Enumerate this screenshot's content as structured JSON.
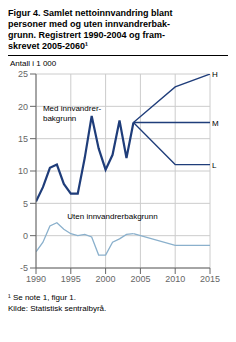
{
  "chart_data": {
    "type": "line",
    "title": "Figur 4. Samlet nettoinnvandring blant\npersoner med og uten innvandrerbak-\ngrunn. Registrert 1990-2004 og fram-\nskrevet 2005-2060¹",
    "y_label": "Antall i 1 000",
    "footnotes": [
      "¹ Se note 1, figur 1.",
      "Kilde: Statistisk sentralbyrå."
    ],
    "xlim": [
      1990,
      2015
    ],
    "ylim": [
      -5,
      25
    ],
    "xticks": [
      1990,
      1995,
      2000,
      2005,
      2010,
      2015
    ],
    "yticks": [
      -5,
      0,
      5,
      10,
      15,
      20,
      25
    ],
    "grid": true,
    "series": [
      {
        "color": "#1f3d7a",
        "x": [
          1990,
          1991,
          1992,
          1993,
          1994,
          1995,
          1996,
          1997,
          1998,
          1999,
          2000,
          2001,
          2002,
          2003,
          2004
        ],
        "values": [
          5.3,
          7.5,
          10.5,
          11.0,
          8.0,
          6.5,
          6.5,
          12.0,
          18.5,
          13.5,
          10.2,
          12.5,
          17.8,
          12.0,
          17.5
        ]
      },
      {
        "color": "#1f3d7a",
        "x": [
          2004,
          2010,
          2015
        ],
        "values": [
          17.5,
          23.0,
          25.0
        ]
      },
      {
        "color": "#1f3d7a",
        "x": [
          2004,
          2010,
          2015
        ],
        "values": [
          17.5,
          17.5,
          17.5
        ]
      },
      {
        "color": "#1f3d7a",
        "x": [
          2004,
          2010,
          2015
        ],
        "values": [
          17.5,
          11.0,
          11.0
        ]
      },
      {
        "color": "#8ab0cc",
        "x": [
          1990,
          1991,
          1992,
          1993,
          1994,
          1995,
          1996,
          1997,
          1998,
          1999,
          2000,
          2001,
          2002,
          2003,
          2004
        ],
        "values": [
          -2.5,
          -1.0,
          1.5,
          2.0,
          1.0,
          0.3,
          0.0,
          0.2,
          -0.2,
          -3.0,
          -3.0,
          -1.0,
          -0.5,
          0.2,
          0.3
        ]
      },
      {
        "color": "#8ab0cc",
        "x": [
          2004,
          2010,
          2015
        ],
        "values": [
          0.3,
          -1.5,
          -1.5
        ]
      }
    ],
    "annotations": [
      {
        "text": "Med innvandrer-\nbakgrunn",
        "x": 1991.0,
        "y": 20.5
      },
      {
        "text": "Uten innvandrerbakgrunn",
        "x": 1994.5,
        "y": 3.8
      },
      {
        "text": "H",
        "x": 2015.3,
        "y": 25.0
      },
      {
        "text": "M",
        "x": 2015.3,
        "y": 17.5
      },
      {
        "text": "L",
        "x": 2015.3,
        "y": 11.0
      }
    ]
  }
}
